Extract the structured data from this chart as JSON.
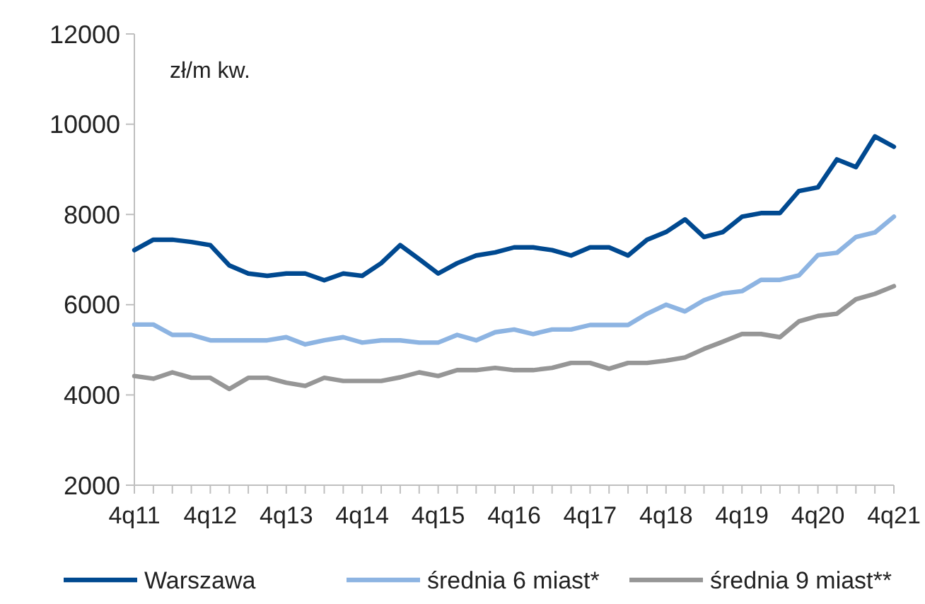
{
  "chart_data": {
    "type": "line",
    "ylabel": "zł/m kw.",
    "categories": [
      "4q11",
      null,
      null,
      null,
      "4q12",
      null,
      null,
      null,
      "4q13",
      null,
      null,
      null,
      "4q14",
      null,
      null,
      null,
      "4q15",
      null,
      null,
      null,
      "4q16",
      null,
      null,
      null,
      "4q17",
      null,
      null,
      null,
      "4q18",
      null,
      null,
      null,
      "4q19",
      null,
      null,
      null,
      "4q20",
      null,
      null,
      null,
      "4q21"
    ],
    "series": [
      {
        "name": "Warszawa",
        "color": "#004990",
        "values": [
          7210,
          7440,
          7440,
          7390,
          7320,
          6870,
          6690,
          6640,
          6690,
          6690,
          6540,
          6690,
          6640,
          6920,
          7320,
          7010,
          6690,
          6920,
          7090,
          7160,
          7270,
          7270,
          7210,
          7090,
          7270,
          7270,
          7090,
          7440,
          7610,
          7890,
          7500,
          7610,
          7950,
          8030,
          8030,
          8520,
          8600,
          9220,
          9050,
          9730,
          9500
        ]
      },
      {
        "name": "średnia 6 miast*",
        "color": "#8db4e2",
        "values": [
          5560,
          5560,
          5330,
          5330,
          5210,
          5210,
          5210,
          5210,
          5280,
          5120,
          5210,
          5280,
          5160,
          5210,
          5210,
          5160,
          5160,
          5330,
          5210,
          5390,
          5450,
          5350,
          5450,
          5450,
          5550,
          5550,
          5550,
          5800,
          6000,
          5850,
          6100,
          6250,
          6300,
          6550,
          6550,
          6650,
          7100,
          7150,
          7500,
          7600,
          7950
        ]
      },
      {
        "name": "średnia 9 miast**",
        "color": "#969696",
        "values": [
          4420,
          4360,
          4500,
          4380,
          4380,
          4130,
          4380,
          4380,
          4270,
          4200,
          4380,
          4310,
          4310,
          4310,
          4390,
          4500,
          4420,
          4550,
          4550,
          4600,
          4550,
          4550,
          4600,
          4710,
          4710,
          4580,
          4710,
          4710,
          4760,
          4830,
          5020,
          5180,
          5350,
          5350,
          5280,
          5630,
          5750,
          5800,
          6120,
          6240,
          6410
        ]
      }
    ],
    "ylim": [
      2000,
      12000
    ],
    "yticks": [
      2000,
      4000,
      6000,
      8000,
      10000,
      12000
    ],
    "grid": false,
    "legend": "bottom",
    "marker": "none",
    "line_style": "solid"
  }
}
